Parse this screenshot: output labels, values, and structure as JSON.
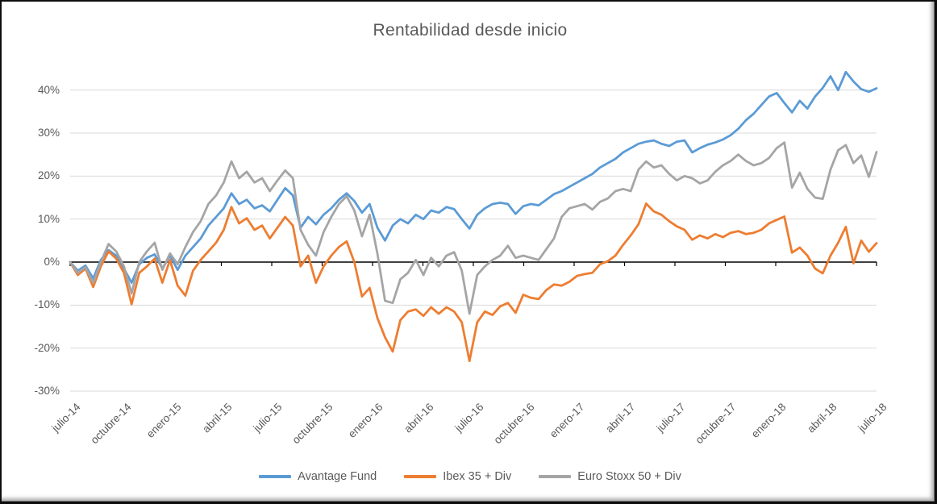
{
  "title": "Rentabilidad desde inicio",
  "chart_data": {
    "type": "line",
    "title": "Rentabilidad desde inicio",
    "xlabel": "",
    "ylabel": "",
    "grid": true,
    "legend_position": "bottom",
    "ylim": [
      -30,
      45
    ],
    "y_ticks": [
      40,
      30,
      20,
      10,
      0,
      -10,
      -20,
      -30
    ],
    "y_tick_labels": [
      "40%",
      "30%",
      "20%",
      "10%",
      "0%",
      "-10%",
      "-20%",
      "-30%"
    ],
    "x_tick_labels": [
      "julio-14",
      "octubre-14",
      "enero-15",
      "abril-15",
      "julio-15",
      "octubre-15",
      "enero-16",
      "abril-16",
      "julio-16",
      "octubre-16",
      "enero-17",
      "abril-17",
      "julio-17",
      "octubre-17",
      "enero-18",
      "abril-18",
      "julio-18"
    ],
    "x": [
      "2014-07-01",
      "2014-07-15",
      "2014-07-29",
      "2014-08-12",
      "2014-08-26",
      "2014-09-09",
      "2014-09-23",
      "2014-10-07",
      "2014-10-21",
      "2014-11-04",
      "2014-11-18",
      "2014-12-02",
      "2014-12-16",
      "2014-12-30",
      "2015-01-13",
      "2015-01-27",
      "2015-02-10",
      "2015-02-24",
      "2015-03-10",
      "2015-03-24",
      "2015-04-07",
      "2015-04-21",
      "2015-05-05",
      "2015-05-19",
      "2015-06-02",
      "2015-06-16",
      "2015-06-30",
      "2015-07-14",
      "2015-07-28",
      "2015-08-11",
      "2015-08-25",
      "2015-09-08",
      "2015-09-22",
      "2015-10-06",
      "2015-10-20",
      "2015-11-03",
      "2015-11-17",
      "2015-12-01",
      "2015-12-15",
      "2015-12-29",
      "2016-01-12",
      "2016-01-26",
      "2016-02-09",
      "2016-02-23",
      "2016-03-08",
      "2016-03-22",
      "2016-04-05",
      "2016-04-19",
      "2016-05-03",
      "2016-05-17",
      "2016-05-31",
      "2016-06-14",
      "2016-06-28",
      "2016-07-12",
      "2016-07-26",
      "2016-08-09",
      "2016-08-23",
      "2016-09-06",
      "2016-09-20",
      "2016-10-04",
      "2016-10-18",
      "2016-11-01",
      "2016-11-15",
      "2016-11-29",
      "2016-12-13",
      "2016-12-27",
      "2017-01-10",
      "2017-01-24",
      "2017-02-07",
      "2017-02-21",
      "2017-03-07",
      "2017-03-21",
      "2017-04-04",
      "2017-04-18",
      "2017-05-02",
      "2017-05-16",
      "2017-05-30",
      "2017-06-13",
      "2017-06-27",
      "2017-07-11",
      "2017-07-25",
      "2017-08-08",
      "2017-08-22",
      "2017-09-05",
      "2017-09-19",
      "2017-10-03",
      "2017-10-17",
      "2017-10-31",
      "2017-11-14",
      "2017-11-28",
      "2017-12-12",
      "2017-12-26",
      "2018-01-09",
      "2018-01-23",
      "2018-02-06",
      "2018-02-20",
      "2018-03-06",
      "2018-03-20",
      "2018-04-03",
      "2018-04-17",
      "2018-05-01",
      "2018-05-15",
      "2018-05-29",
      "2018-06-12",
      "2018-06-26",
      "2018-07-10"
    ],
    "series": [
      {
        "name": "Avantage Fund",
        "color": "#5B9BD5",
        "values": [
          0.0,
          -2.0,
          -0.8,
          -3.8,
          0.5,
          2.8,
          1.5,
          -1.5,
          -4.8,
          -0.5,
          1.0,
          1.8,
          -1.5,
          1.5,
          -1.8,
          1.5,
          3.5,
          5.5,
          8.5,
          10.5,
          12.5,
          16.0,
          13.5,
          14.5,
          12.5,
          13.2,
          11.8,
          14.5,
          17.2,
          15.5,
          8.0,
          10.5,
          8.8,
          11.0,
          12.5,
          14.5,
          16.0,
          14.2,
          11.5,
          13.5,
          8.0,
          5.0,
          8.5,
          10.0,
          9.0,
          11.0,
          10.0,
          12.0,
          11.5,
          12.8,
          12.3,
          10.0,
          7.8,
          11.0,
          12.5,
          13.5,
          13.8,
          13.5,
          11.2,
          13.0,
          13.5,
          13.2,
          14.5,
          15.8,
          16.5,
          17.5,
          18.5,
          19.5,
          20.5,
          22.0,
          23.0,
          24.0,
          25.5,
          26.5,
          27.5,
          28.0,
          28.3,
          27.5,
          27.0,
          28.0,
          28.3,
          25.5,
          26.5,
          27.3,
          27.8,
          28.5,
          29.5,
          31.0,
          33.0,
          34.5,
          36.5,
          38.5,
          39.3,
          37.0,
          34.8,
          37.5,
          35.7,
          38.5,
          40.5,
          43.2,
          40.0,
          44.2,
          42.0,
          40.2,
          39.6,
          40.4
        ]
      },
      {
        "name": "Ibex 35 + Div",
        "color": "#ED7D31",
        "values": [
          0.0,
          -3.0,
          -1.5,
          -5.8,
          -1.0,
          2.5,
          0.8,
          -2.5,
          -9.8,
          -2.5,
          -1.0,
          0.8,
          -4.8,
          0.5,
          -5.5,
          -7.8,
          -2.0,
          0.5,
          2.5,
          4.5,
          7.5,
          12.8,
          9.0,
          10.2,
          7.5,
          8.5,
          5.5,
          8.0,
          10.5,
          8.5,
          -1.0,
          1.5,
          -4.8,
          -1.0,
          1.5,
          3.5,
          4.8,
          0.0,
          -8.0,
          -6.0,
          -13.0,
          -17.5,
          -20.8,
          -13.5,
          -11.5,
          -11.0,
          -12.5,
          -10.5,
          -12.0,
          -10.5,
          -11.5,
          -14.0,
          -23.0,
          -14.0,
          -11.5,
          -12.3,
          -10.3,
          -9.5,
          -11.8,
          -7.6,
          -8.3,
          -8.6,
          -6.5,
          -5.2,
          -5.5,
          -4.6,
          -3.2,
          -2.8,
          -2.5,
          -0.5,
          0.2,
          1.5,
          4.0,
          6.2,
          8.8,
          13.6,
          11.8,
          11.0,
          9.5,
          8.3,
          7.5,
          5.2,
          6.2,
          5.5,
          6.5,
          5.8,
          6.8,
          7.2,
          6.5,
          6.8,
          7.5,
          9.0,
          9.8,
          10.6,
          2.2,
          3.4,
          1.5,
          -1.5,
          -2.6,
          1.5,
          4.5,
          8.2,
          -0.3,
          5.0,
          2.4,
          4.4
        ]
      },
      {
        "name": "Euro Stoxx 50 + Div",
        "color": "#A5A5A5",
        "values": [
          0.0,
          -2.5,
          -1.2,
          -4.8,
          0.0,
          4.2,
          2.5,
          -1.0,
          -7.3,
          0.0,
          2.5,
          4.5,
          -1.8,
          2.0,
          -0.5,
          3.5,
          7.0,
          9.5,
          13.5,
          15.5,
          18.5,
          23.4,
          19.5,
          21.0,
          18.5,
          19.5,
          16.5,
          19.0,
          21.3,
          19.5,
          7.5,
          4.0,
          1.5,
          7.0,
          10.5,
          13.5,
          15.3,
          12.0,
          6.0,
          11.0,
          2.0,
          -9.0,
          -9.5,
          -4.0,
          -2.5,
          0.5,
          -3.0,
          1.0,
          -1.0,
          1.5,
          2.3,
          -2.0,
          -12.0,
          -3.0,
          -1.0,
          0.5,
          1.5,
          3.8,
          1.0,
          1.5,
          1.0,
          0.5,
          3.0,
          5.5,
          10.5,
          12.5,
          13.0,
          13.5,
          12.2,
          14.0,
          14.8,
          16.5,
          17.0,
          16.5,
          21.5,
          23.4,
          22.0,
          22.5,
          20.5,
          19.0,
          20.0,
          19.5,
          18.3,
          19.0,
          21.0,
          22.5,
          23.5,
          25.0,
          23.5,
          22.5,
          23.0,
          24.2,
          26.5,
          27.8,
          17.3,
          20.8,
          17.0,
          15.0,
          14.7,
          21.5,
          26.0,
          27.2,
          23.0,
          24.8,
          19.8,
          25.6
        ]
      }
    ]
  }
}
